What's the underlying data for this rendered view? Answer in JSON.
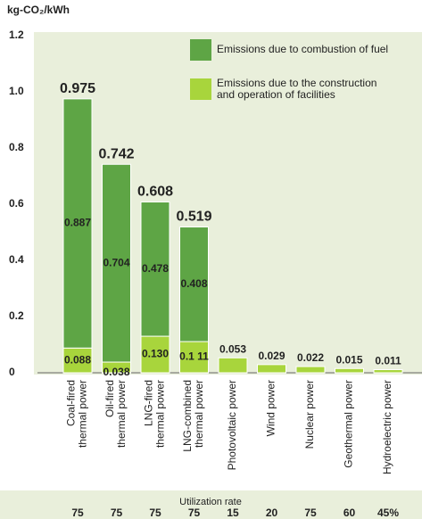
{
  "chart_data": {
    "type": "bar",
    "stacked": true,
    "ylabel": "kg-CO₂/kWh",
    "categories": [
      "Coal-fired\nthermal power",
      "Oil-fired\nthermal power",
      "LNG-fired\nthermal power",
      "LNG-combined\nthermal power",
      "Photovoltaic power",
      "Wind power",
      "Nuclear power",
      "Geothermal power",
      "Hydroelectric power"
    ],
    "series": [
      {
        "name": "Emissions due to combustion of fuel",
        "color": "#5ea545",
        "values": [
          0.887,
          0.704,
          0.478,
          0.408,
          null,
          null,
          null,
          null,
          null
        ]
      },
      {
        "name": "Emissions due to the construction\nand operation of facilities",
        "color": "#a8d53c",
        "values": [
          0.088,
          0.038,
          0.13,
          0.111,
          0.053,
          0.029,
          0.022,
          0.015,
          0.011
        ],
        "value_labels": [
          "0.088",
          "0.038",
          "0.130",
          "0.1 11",
          null,
          null,
          null,
          null,
          null
        ]
      }
    ],
    "totals": [
      0.975,
      0.742,
      0.608,
      0.519,
      0.053,
      0.029,
      0.022,
      0.015,
      0.011
    ],
    "ylim": [
      0,
      1.2
    ],
    "yticks": [
      0,
      0.2,
      0.4,
      0.6,
      0.8,
      {
        "value": 1.0,
        "label": "1.0"
      },
      1.2
    ],
    "utilization": {
      "label": "Utilization rate",
      "values": [
        75,
        75,
        75,
        75,
        15,
        20,
        75,
        60,
        45
      ],
      "value_labels": [
        "75",
        "75",
        "75",
        "75",
        "15",
        "20",
        "75",
        "60",
        "45%"
      ]
    }
  }
}
